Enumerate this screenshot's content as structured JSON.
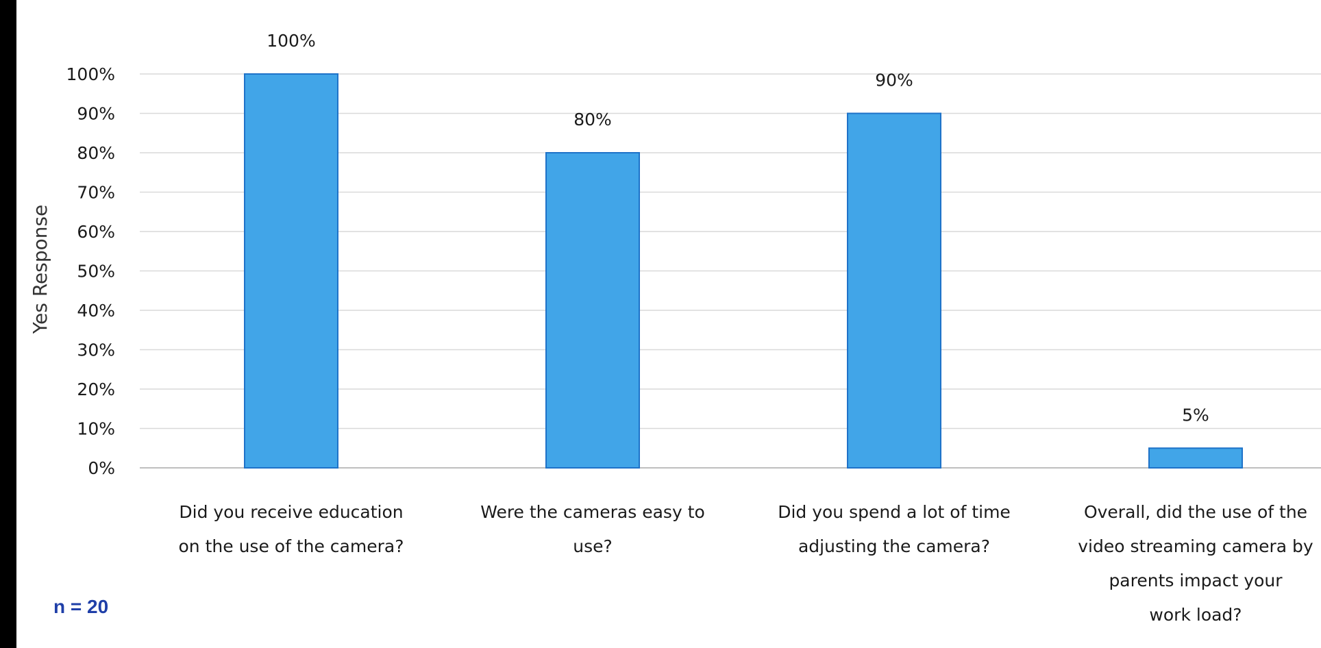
{
  "chart_data": {
    "type": "bar",
    "categories": [
      "Did you receive education on the use of the camera?",
      "Were the cameras easy to use?",
      "Did you spend a lot of time adjusting the camera?",
      "Overall, did the use of the video streaming camera by parents impact your work load?"
    ],
    "category_lines": [
      [
        "Did you receive education",
        "on the use of the camera?"
      ],
      [
        "Were the cameras easy to",
        "use?"
      ],
      [
        "Did you spend a lot of time",
        "adjusting the camera?"
      ],
      [
        "Overall, did the use of the",
        "video streaming camera by",
        "parents impact your",
        "work load?"
      ]
    ],
    "values": [
      100,
      80,
      90,
      5
    ],
    "data_labels": [
      "100%",
      "80%",
      "90%",
      "5%"
    ],
    "ylabel": "Yes Response",
    "ylim": [
      0,
      100
    ],
    "yticks": [
      0,
      10,
      20,
      30,
      40,
      50,
      60,
      70,
      80,
      90,
      100
    ],
    "ytick_labels": [
      "0%",
      "10%",
      "20%",
      "30%",
      "40%",
      "50%",
      "60%",
      "70%",
      "80%",
      "90%",
      "100%"
    ],
    "grid": true,
    "legend": "none",
    "bar_color": "#41a5e8",
    "bar_edge_color": "#1e72c8"
  },
  "note": "n = 20",
  "colors": {
    "gridline": "#d9d9d9",
    "axis": "#bfbfbf",
    "note": "#1f3fa8"
  }
}
